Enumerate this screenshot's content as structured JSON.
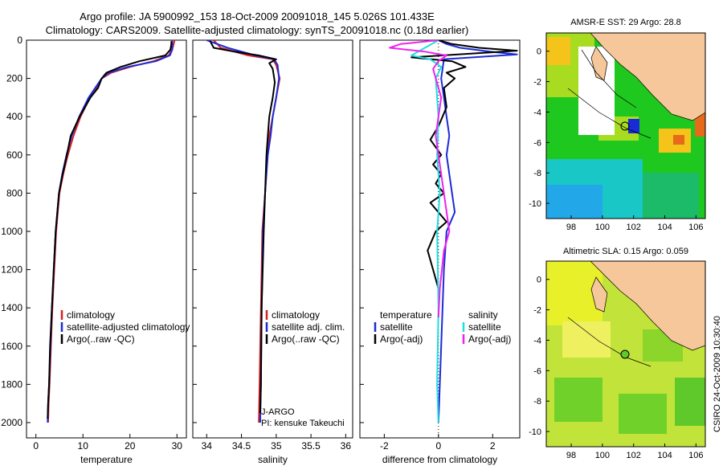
{
  "header": {
    "line1": "Argo profile: JA 5900992_153 18-Oct-2009 20091018_145 5.026S 101.433E",
    "line2": "Climatology: CARS2009. Satellite-adjusted climatology: synTS_20091018.nc (0.18d earlier)"
  },
  "side_label": "CSIRO 24-Oct-2009 10:30:40",
  "colors": {
    "red": "#d62020",
    "blue": "#1c2bd8",
    "black": "#000000",
    "cyan": "#22dde0",
    "magenta": "#ee22ee",
    "land": "#f6c79a",
    "sea_green": "#1ec81e"
  },
  "chart_data": [
    {
      "type": "line",
      "id": "temperature",
      "xlabel": "temperature",
      "xlim": [
        -2,
        32
      ],
      "xticks": [
        0,
        10,
        20,
        30
      ],
      "ylim": [
        2080,
        0
      ],
      "yticks": [
        0,
        200,
        400,
        600,
        800,
        1000,
        1200,
        1400,
        1600,
        1800,
        2000
      ],
      "legend": [
        "climatology",
        "satellite-adjusted climatology",
        "Argo(..raw -QC)"
      ],
      "series": [
        {
          "name": "climatology",
          "color": "red",
          "x": [
            29.5,
            29.3,
            29.0,
            28.2,
            25.0,
            20.0,
            16.0,
            14.0,
            13.0,
            11.5,
            9.5,
            8.0,
            6.8,
            5.8,
            5.0,
            4.3,
            3.9,
            3.5,
            3.2,
            2.9,
            2.7,
            2.6
          ],
          "y": [
            0,
            20,
            50,
            80,
            110,
            140,
            170,
            200,
            250,
            300,
            400,
            500,
            600,
            700,
            800,
            1000,
            1200,
            1400,
            1600,
            1800,
            1900,
            2000
          ]
        },
        {
          "name": "satellite-adjusted climatology",
          "color": "blue",
          "x": [
            29.0,
            29.0,
            29.0,
            28.5,
            25.5,
            19.5,
            15.5,
            14.0,
            12.6,
            11.2,
            9.2,
            7.6,
            6.5,
            5.6,
            4.9,
            4.2,
            3.8,
            3.4,
            3.1,
            2.8,
            2.6,
            2.5
          ],
          "y": [
            0,
            20,
            50,
            80,
            110,
            140,
            170,
            200,
            250,
            300,
            400,
            500,
            600,
            700,
            800,
            1000,
            1200,
            1400,
            1600,
            1800,
            1900,
            2000
          ]
        },
        {
          "name": "Argo(..raw -QC)",
          "color": "black",
          "x": [
            28.8,
            28.8,
            28.6,
            27.5,
            22.0,
            18.0,
            15.0,
            14.0,
            13.2,
            11.6,
            9.3,
            7.4,
            6.6,
            5.7,
            4.9,
            4.2,
            3.8,
            3.4,
            3.0,
            2.8,
            2.6,
            2.5
          ],
          "y": [
            5,
            20,
            50,
            80,
            110,
            140,
            170,
            200,
            250,
            300,
            400,
            500,
            600,
            700,
            800,
            1000,
            1200,
            1400,
            1600,
            1800,
            1900,
            1980
          ]
        }
      ]
    },
    {
      "type": "line",
      "id": "salinity",
      "xlabel": "salinity",
      "xlim": [
        33.8,
        36.1
      ],
      "xticks": [
        34,
        34.5,
        35,
        35.5,
        36
      ],
      "ylim": [
        2080,
        0
      ],
      "legend": [
        "climatology",
        "satellite adj. clim.",
        "Argo(..raw -QC)"
      ],
      "annotations": [
        "J-ARGO",
        "PI: kensuke Takeuchi"
      ],
      "series": [
        {
          "name": "climatology",
          "color": "red",
          "x": [
            34.1,
            34.2,
            34.6,
            34.95,
            35.0,
            35.05,
            35.0,
            34.95,
            34.9,
            34.87,
            34.84,
            34.8,
            34.78,
            34.76,
            34.75
          ],
          "y": [
            0,
            40,
            80,
            100,
            130,
            200,
            300,
            400,
            500,
            600,
            800,
            1000,
            1400,
            1800,
            2000
          ]
        },
        {
          "name": "satellite adj. clim.",
          "color": "blue",
          "x": [
            34.0,
            34.3,
            34.7,
            34.97,
            35.02,
            35.04,
            35.0,
            34.95,
            34.92,
            34.88,
            34.84,
            34.81,
            34.79,
            34.78,
            34.77
          ],
          "y": [
            0,
            40,
            80,
            100,
            130,
            200,
            300,
            400,
            500,
            600,
            800,
            1000,
            1400,
            1800,
            2000
          ]
        },
        {
          "name": "Argo(..raw -QC)",
          "color": "black",
          "x": [
            34.05,
            34.1,
            34.4,
            34.75,
            35.0,
            34.9,
            34.95,
            34.98,
            34.95,
            34.9,
            34.88,
            34.86,
            34.85,
            34.84,
            34.82,
            34.79,
            34.78,
            34.77
          ],
          "y": [
            5,
            40,
            60,
            80,
            100,
            120,
            150,
            220,
            300,
            400,
            500,
            600,
            700,
            800,
            1000,
            1400,
            1800,
            1950
          ]
        }
      ]
    },
    {
      "type": "line",
      "id": "difference",
      "xlabel": "difference from climatology",
      "xlim": [
        -2.9,
        3.0
      ],
      "xticks": [
        -2,
        0,
        2
      ],
      "ylim": [
        2080,
        0
      ],
      "legend": [
        "temperature",
        "satellite",
        "Argo(-adj)",
        "salinity",
        "satellite",
        "Argo(-adj)"
      ],
      "series": [
        {
          "name": "temperature satellite",
          "color": "blue",
          "x": [
            0,
            0.3,
            0.8,
            1.9,
            2.9,
            0.2,
            0.1,
            0.2,
            0.3,
            0.4,
            0.3,
            0.4,
            0.5,
            0.6,
            0.3,
            0.2,
            0.1,
            0
          ],
          "y": [
            0,
            20,
            40,
            60,
            75,
            100,
            200,
            300,
            400,
            500,
            600,
            700,
            800,
            900,
            1000,
            1200,
            1600,
            2000
          ]
        },
        {
          "name": "temperature Argo(-adj)",
          "color": "black",
          "x": [
            0,
            0.5,
            1.5,
            2.9,
            -1.0,
            0.5,
            1.0,
            0.3,
            0.6,
            0.2,
            0.3,
            0.0,
            -0.3,
            0.1,
            -0.2,
            0.1,
            -0.1,
            0.2,
            -0.3,
            0.0,
            0.3,
            -0.1,
            -0.4,
            -0.2,
            0.0
          ],
          "y": [
            0,
            20,
            40,
            55,
            90,
            110,
            140,
            170,
            200,
            250,
            350,
            450,
            520,
            600,
            650,
            700,
            750,
            800,
            850,
            900,
            950,
            1000,
            1100,
            1200,
            1300
          ]
        },
        {
          "name": "salinity satellite",
          "color": "cyan",
          "x": [
            0,
            -0.5,
            -1.0,
            -0.3,
            0.1,
            -0.1,
            0.0,
            -0.05,
            0.05,
            -0.05,
            0.0,
            -0.05,
            0.0
          ],
          "y": [
            0,
            40,
            80,
            100,
            140,
            200,
            400,
            600,
            800,
            1000,
            1400,
            1800,
            2000
          ]
        },
        {
          "name": "salinity Argo(-adj)",
          "color": "magenta",
          "x": [
            0,
            -1.4,
            -1.8,
            -0.5,
            0.3,
            0.0,
            -0.2,
            0.1,
            -0.1,
            0.2,
            0.4,
            0.2,
            0.05,
            0.0
          ],
          "y": [
            0,
            20,
            40,
            60,
            80,
            110,
            150,
            300,
            500,
            800,
            1000,
            1100,
            1300,
            1450
          ]
        }
      ]
    },
    {
      "type": "heatmap",
      "id": "sst_map",
      "title": "AMSR-E SST: 29 Argo: 28.8",
      "xlim": [
        96.4,
        106.6
      ],
      "xticks": [
        98,
        100,
        102,
        104,
        106
      ],
      "ylim": [
        -11,
        1.2
      ],
      "yticks": [
        0,
        -2,
        -4,
        -6,
        -8,
        -10
      ],
      "argo_position": {
        "lon": 101.433,
        "lat": -5.026
      }
    },
    {
      "type": "heatmap",
      "id": "sla_map",
      "title": "Altimetric SLA: 0.15 Argo: 0.059",
      "xlim": [
        96.4,
        106.6
      ],
      "xticks": [
        98,
        100,
        102,
        104,
        106
      ],
      "ylim": [
        -11,
        1.2
      ],
      "yticks": [
        0,
        -2,
        -4,
        -6,
        -8,
        -10
      ],
      "argo_position": {
        "lon": 101.433,
        "lat": -5.026
      }
    }
  ]
}
